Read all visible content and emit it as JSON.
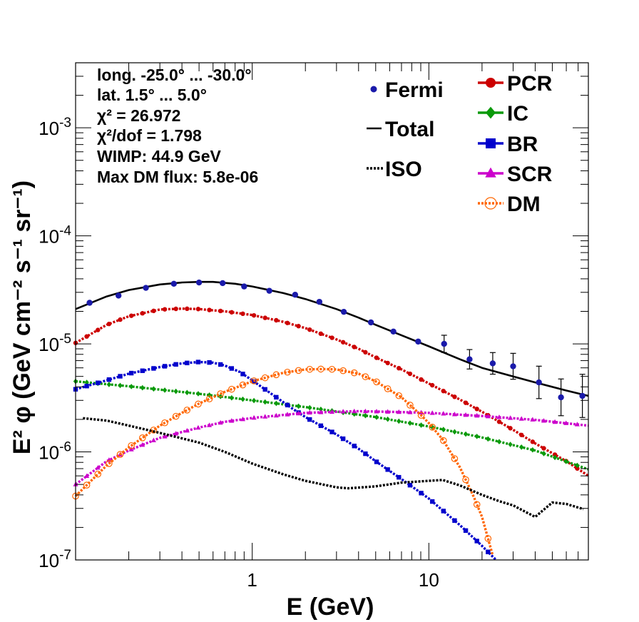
{
  "chart_data": {
    "type": "scatter",
    "xlabel": "E (GeV)",
    "ylabel": "E² φ (GeV cm⁻² s⁻¹ sr⁻¹)",
    "x_scale": "log",
    "y_scale": "log",
    "xlim": [
      0.1,
      80
    ],
    "ylim": [
      1e-07,
      0.004
    ],
    "x_ticks": [
      {
        "value": 1,
        "label": "1"
      },
      {
        "value": 10,
        "label": "10"
      }
    ],
    "y_ticks": [
      {
        "value": 1e-07,
        "label": "10⁻⁷"
      },
      {
        "value": 1e-06,
        "label": "10⁻⁶"
      },
      {
        "value": 1e-05,
        "label": "10⁻⁵"
      },
      {
        "value": 0.0001,
        "label": "10⁻⁴"
      },
      {
        "value": 0.001,
        "label": "10⁻³"
      }
    ],
    "annotations": [
      "long. -25.0° ... -30.0°",
      "lat. 1.5° ... 5.0°",
      "χ² = 26.972",
      "χ²/dof = 1.798",
      "WIMP: 44.9 GeV",
      "Max DM flux: 5.8e-06"
    ],
    "fermi": {
      "name": "Fermi",
      "color": "#1a1aaa",
      "points": [
        {
          "x": 0.12,
          "y": 2.4e-05,
          "err": 0
        },
        {
          "x": 0.175,
          "y": 2.8e-05,
          "err": 0
        },
        {
          "x": 0.25,
          "y": 3.3e-05,
          "err": 0
        },
        {
          "x": 0.36,
          "y": 3.6e-05,
          "err": 0
        },
        {
          "x": 0.5,
          "y": 3.7e-05,
          "err": 0
        },
        {
          "x": 0.68,
          "y": 3.65e-05,
          "err": 0
        },
        {
          "x": 0.9,
          "y": 3.4e-05,
          "err": 0
        },
        {
          "x": 1.25,
          "y": 3.1e-05,
          "err": 0
        },
        {
          "x": 1.75,
          "y": 2.85e-05,
          "err": 0
        },
        {
          "x": 2.4,
          "y": 2.45e-05,
          "err": 0
        },
        {
          "x": 3.3,
          "y": 1.98e-05,
          "err": 0
        },
        {
          "x": 4.7,
          "y": 1.58e-05,
          "err": 0
        },
        {
          "x": 6.3,
          "y": 1.3e-05,
          "err": 0
        },
        {
          "x": 8.7,
          "y": 1.05e-05,
          "err": 0
        },
        {
          "x": 12.2,
          "y": 1e-05,
          "err": 0.08
        },
        {
          "x": 17,
          "y": 7.2e-06,
          "err": 0.09
        },
        {
          "x": 23,
          "y": 6.6e-06,
          "err": 0.1
        },
        {
          "x": 30,
          "y": 6.2e-06,
          "err": 0.12
        },
        {
          "x": 42,
          "y": 4.4e-06,
          "err": 0.15
        },
        {
          "x": 56,
          "y": 3.2e-06,
          "err": 0.17
        },
        {
          "x": 74,
          "y": 3.3e-06,
          "err": 0.2
        }
      ]
    },
    "series": [
      {
        "name": "Total",
        "color": "#000000",
        "style": "solid",
        "marker": "none",
        "x": [
          0.1,
          0.15,
          0.2,
          0.3,
          0.4,
          0.5,
          0.6,
          0.8,
          1,
          1.5,
          2,
          3,
          4,
          5,
          7,
          10,
          15,
          20,
          30,
          40,
          60,
          80
        ],
        "y": [
          2.1e-05,
          2.75e-05,
          3.15e-05,
          3.55e-05,
          3.7e-05,
          3.75e-05,
          3.75e-05,
          3.6e-05,
          3.4e-05,
          2.95e-05,
          2.6e-05,
          2.1e-05,
          1.75e-05,
          1.5e-05,
          1.2e-05,
          9.5e-06,
          7.2e-06,
          6e-06,
          5e-06,
          4.4e-06,
          3.7e-06,
          3.3e-06
        ]
      },
      {
        "name": "PCR",
        "color": "#cc0000",
        "style": "dotted",
        "marker": "circle",
        "x": [
          0.1,
          0.15,
          0.2,
          0.3,
          0.4,
          0.5,
          0.7,
          1,
          1.5,
          2,
          3,
          4,
          5,
          7,
          10,
          15,
          20,
          30,
          40,
          60,
          80
        ],
        "y": [
          1.02e-05,
          1.5e-05,
          1.8e-05,
          2.08e-05,
          2.12e-05,
          2.1e-05,
          2e-05,
          1.85e-05,
          1.6e-05,
          1.4e-05,
          1.1e-05,
          9e-06,
          7.5e-06,
          5.8e-06,
          4.3e-06,
          3.05e-06,
          2.35e-06,
          1.6e-06,
          1.2e-06,
          8.2e-07,
          6e-07
        ]
      },
      {
        "name": "IC",
        "color": "#0a9a0a",
        "style": "dotted",
        "marker": "diamond",
        "x": [
          0.1,
          0.2,
          0.5,
          1,
          2,
          5,
          10,
          20,
          40,
          80
        ],
        "y": [
          4.5e-06,
          4.05e-06,
          3.45e-06,
          3e-06,
          2.6e-06,
          2.1e-06,
          1.72e-06,
          1.36e-06,
          1.03e-06,
          6.9e-07
        ]
      },
      {
        "name": "BR",
        "color": "#0000cc",
        "style": "dotted",
        "marker": "square",
        "x": [
          0.1,
          0.15,
          0.2,
          0.3,
          0.4,
          0.5,
          0.6,
          0.7,
          0.85,
          1,
          1.3,
          1.7,
          2,
          3,
          4,
          5,
          7,
          10,
          15,
          20,
          24
        ],
        "y": [
          3.8e-06,
          4.6e-06,
          5.3e-06,
          6.1e-06,
          6.6e-06,
          6.8e-06,
          6.7e-06,
          6.3e-06,
          5.5e-06,
          4.6e-06,
          3.4e-06,
          2.5e-06,
          2.1e-06,
          1.45e-06,
          1.07e-06,
          8.2e-07,
          5.6e-07,
          3.7e-07,
          2.1e-07,
          1.35e-07,
          1e-07
        ]
      },
      {
        "name": "SCR",
        "color": "#cc00cc",
        "style": "dotted",
        "marker": "triangle",
        "x": [
          0.1,
          0.15,
          0.2,
          0.3,
          0.5,
          0.7,
          1,
          1.5,
          2,
          3,
          4,
          6,
          10,
          20,
          40,
          80
        ],
        "y": [
          5e-07,
          8.2e-07,
          1.03e-06,
          1.35e-06,
          1.68e-06,
          1.9e-06,
          2.06e-06,
          2.2e-06,
          2.3e-06,
          2.35e-06,
          2.38e-06,
          2.35e-06,
          2.3e-06,
          2.15e-06,
          1.98e-06,
          1.75e-06
        ]
      },
      {
        "name": "DM",
        "color": "#ff6600",
        "style": "dotted",
        "marker": "ring",
        "x": [
          0.1,
          0.15,
          0.2,
          0.3,
          0.4,
          0.5,
          0.7,
          1,
          1.5,
          2,
          2.5,
          3,
          4,
          5,
          7,
          9,
          10,
          12,
          15,
          18,
          20,
          23
        ],
        "y": [
          3.9e-07,
          7.5e-07,
          1.1e-06,
          1.75e-06,
          2.3e-06,
          2.8e-06,
          3.6e-06,
          4.5e-06,
          5.4e-06,
          5.8e-06,
          5.85e-06,
          5.8e-06,
          5.3e-06,
          4.5e-06,
          3.2e-06,
          2.2e-06,
          1.85e-06,
          1.3e-06,
          7.2e-07,
          3.8e-07,
          2.5e-07,
          1.1e-07
        ]
      },
      {
        "name": "ISO",
        "color": "#000000",
        "style": "dotted",
        "marker": "none",
        "x": [
          0.11,
          0.15,
          0.2,
          0.3,
          0.5,
          0.7,
          1,
          1.5,
          2,
          3,
          3.5,
          5,
          7,
          10,
          12,
          15,
          20,
          25,
          30,
          40,
          50,
          60,
          75
        ],
        "y": [
          2.05e-06,
          1.95e-06,
          1.75e-06,
          1.5e-06,
          1.22e-06,
          1e-06,
          7.8e-07,
          6.2e-07,
          5.4e-07,
          4.7e-07,
          4.6e-07,
          4.8e-07,
          5.2e-07,
          5.4e-07,
          5.5e-07,
          4.9e-07,
          4e-07,
          3.5e-07,
          3.2e-07,
          2.5e-07,
          3.4e-07,
          3.3e-07,
          2.95e-07
        ]
      }
    ],
    "legend_left": [
      {
        "label": "Fermi",
        "type": "dot",
        "color": "#1a1aaa"
      },
      {
        "label": "Total",
        "type": "solid",
        "color": "#000000"
      },
      {
        "label": "ISO",
        "type": "dotted",
        "color": "#000000"
      }
    ],
    "legend_right": [
      {
        "label": "PCR",
        "marker": "circle",
        "color": "#cc0000"
      },
      {
        "label": "IC",
        "marker": "diamond",
        "color": "#0a9a0a"
      },
      {
        "label": "BR",
        "marker": "square",
        "color": "#0000cc"
      },
      {
        "label": "SCR",
        "marker": "triangle",
        "color": "#cc00cc"
      },
      {
        "label": "DM",
        "marker": "ring",
        "color": "#ff6600"
      }
    ]
  }
}
